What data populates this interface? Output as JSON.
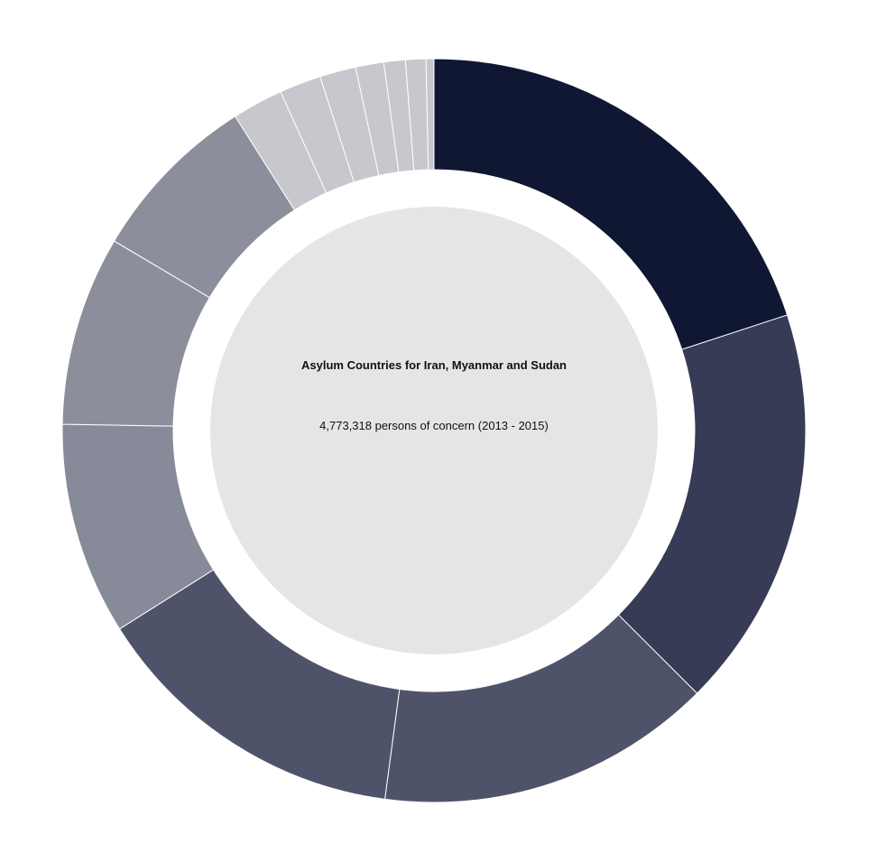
{
  "chart_data": {
    "type": "pie",
    "variant": "donut",
    "title": "Asylum Countries for Iran, Myanmar and Sudan",
    "subtitle": "4,773,318 persons of concern (2013 - 2015)",
    "values": [
      20.35,
      17.85,
      14.9,
      14.2,
      9.4,
      8.4,
      7.65,
      2.25,
      1.85,
      1.6,
      1.25,
      0.95,
      0.9,
      0.35
    ],
    "colors": [
      "#101733",
      "#373b55",
      "#4f536a",
      "#4f536a",
      "#878a98",
      "#8c8f9b",
      "#8c8f9b",
      "#c6c8ce",
      "#c6c8ce",
      "#c6c8ce",
      "#c6c8ce",
      "#c6c8ce",
      "#c6c8ce",
      "#c6c8ce"
    ],
    "center_fill": "#e5e5e5",
    "separator_color": "#ffffff",
    "legend": "none"
  }
}
